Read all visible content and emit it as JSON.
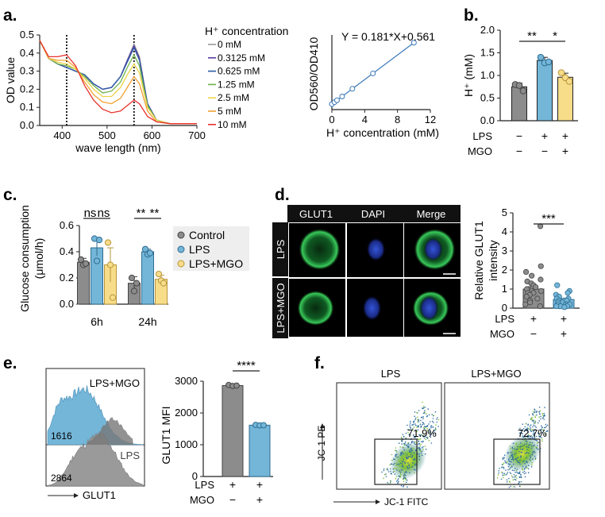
{
  "panels": {
    "a": "a.",
    "b": "b.",
    "c": "c.",
    "d": "d.",
    "e": "e.",
    "f": "f."
  },
  "colors": {
    "control": "#8c8c8c",
    "lps": "#74b6d8",
    "lps_mgo": "#f7dc8a",
    "fitline": "#3a78b8",
    "gating": "#222222"
  },
  "chart_data": [
    {
      "id": "a1",
      "type": "line",
      "xlabel": "wave length (nm)",
      "ylabel": "OD value",
      "xlim": [
        350,
        700
      ],
      "ylim": [
        0,
        0.5
      ],
      "xticks": [
        400,
        500,
        600,
        700
      ],
      "yticks": [
        0.0,
        0.1,
        0.2,
        0.3,
        0.4,
        0.5
      ],
      "legend_title": "H⁺ concentration",
      "vlines": [
        410,
        560
      ],
      "series": [
        {
          "name": "0 mM",
          "color": "#9a9a9a",
          "values": [
            [
              350,
              0.47
            ],
            [
              370,
              0.37
            ],
            [
              390,
              0.34
            ],
            [
              410,
              0.32
            ],
            [
              430,
              0.3
            ],
            [
              450,
              0.28
            ],
            [
              470,
              0.23
            ],
            [
              490,
              0.2
            ],
            [
              510,
              0.21
            ],
            [
              530,
              0.27
            ],
            [
              545,
              0.36
            ],
            [
              560,
              0.45
            ],
            [
              572,
              0.38
            ],
            [
              590,
              0.12
            ],
            [
              610,
              0.03
            ],
            [
              640,
              0.01
            ],
            [
              700,
              0.01
            ]
          ]
        },
        {
          "name": "0.3125 mM",
          "color": "#5b3d9e",
          "values": [
            [
              350,
              0.47
            ],
            [
              370,
              0.37
            ],
            [
              390,
              0.34
            ],
            [
              410,
              0.32
            ],
            [
              430,
              0.3
            ],
            [
              450,
              0.28
            ],
            [
              470,
              0.23
            ],
            [
              490,
              0.2
            ],
            [
              510,
              0.21
            ],
            [
              530,
              0.27
            ],
            [
              545,
              0.36
            ],
            [
              560,
              0.44
            ],
            [
              572,
              0.37
            ],
            [
              590,
              0.12
            ],
            [
              610,
              0.03
            ],
            [
              640,
              0.01
            ],
            [
              700,
              0.01
            ]
          ]
        },
        {
          "name": "0.625 mM",
          "color": "#2c5aa8",
          "values": [
            [
              350,
              0.47
            ],
            [
              370,
              0.37
            ],
            [
              390,
              0.34
            ],
            [
              410,
              0.32
            ],
            [
              430,
              0.3
            ],
            [
              450,
              0.28
            ],
            [
              470,
              0.23
            ],
            [
              490,
              0.2
            ],
            [
              510,
              0.21
            ],
            [
              530,
              0.27
            ],
            [
              545,
              0.35
            ],
            [
              560,
              0.43
            ],
            [
              572,
              0.36
            ],
            [
              590,
              0.12
            ],
            [
              610,
              0.03
            ],
            [
              640,
              0.01
            ],
            [
              700,
              0.01
            ]
          ]
        },
        {
          "name": "1.25 mM",
          "color": "#6fb14a",
          "values": [
            [
              350,
              0.47
            ],
            [
              370,
              0.37
            ],
            [
              390,
              0.34
            ],
            [
              410,
              0.33
            ],
            [
              430,
              0.31
            ],
            [
              450,
              0.27
            ],
            [
              470,
              0.22
            ],
            [
              490,
              0.18
            ],
            [
              510,
              0.19
            ],
            [
              530,
              0.24
            ],
            [
              545,
              0.32
            ],
            [
              560,
              0.39
            ],
            [
              572,
              0.33
            ],
            [
              590,
              0.11
            ],
            [
              610,
              0.03
            ],
            [
              640,
              0.01
            ],
            [
              700,
              0.01
            ]
          ]
        },
        {
          "name": "2.5 mM",
          "color": "#ecd44a",
          "values": [
            [
              350,
              0.47
            ],
            [
              370,
              0.37
            ],
            [
              390,
              0.35
            ],
            [
              410,
              0.34
            ],
            [
              430,
              0.31
            ],
            [
              450,
              0.26
            ],
            [
              470,
              0.2
            ],
            [
              490,
              0.16
            ],
            [
              510,
              0.16
            ],
            [
              530,
              0.21
            ],
            [
              545,
              0.28
            ],
            [
              560,
              0.34
            ],
            [
              572,
              0.29
            ],
            [
              590,
              0.1
            ],
            [
              610,
              0.03
            ],
            [
              640,
              0.01
            ],
            [
              700,
              0.01
            ]
          ]
        },
        {
          "name": "5 mM",
          "color": "#f0a032",
          "values": [
            [
              350,
              0.47
            ],
            [
              370,
              0.37
            ],
            [
              390,
              0.36
            ],
            [
              410,
              0.36
            ],
            [
              430,
              0.32
            ],
            [
              450,
              0.24
            ],
            [
              470,
              0.17
            ],
            [
              490,
              0.13
            ],
            [
              510,
              0.12
            ],
            [
              530,
              0.15
            ],
            [
              545,
              0.21
            ],
            [
              560,
              0.27
            ],
            [
              572,
              0.23
            ],
            [
              590,
              0.08
            ],
            [
              610,
              0.02
            ],
            [
              640,
              0.01
            ],
            [
              700,
              0.01
            ]
          ]
        },
        {
          "name": "10 mM",
          "color": "#e8322c",
          "values": [
            [
              350,
              0.47
            ],
            [
              370,
              0.38
            ],
            [
              390,
              0.38
            ],
            [
              410,
              0.39
            ],
            [
              430,
              0.33
            ],
            [
              450,
              0.22
            ],
            [
              470,
              0.14
            ],
            [
              490,
              0.09
            ],
            [
              510,
              0.07
            ],
            [
              530,
              0.08
            ],
            [
              545,
              0.11
            ],
            [
              560,
              0.14
            ],
            [
              572,
              0.12
            ],
            [
              590,
              0.05
            ],
            [
              610,
              0.02
            ],
            [
              640,
              0.01
            ],
            [
              700,
              0.01
            ]
          ]
        }
      ]
    },
    {
      "id": "a2",
      "type": "scatter",
      "xlabel": "H⁺ concentration (mM)",
      "ylabel": "OD560/OD410",
      "equation": "Y = 0.181*X+0.561",
      "xlim": [
        0,
        12
      ],
      "ylim": [
        0.4,
        2.6
      ],
      "xticks": [
        0,
        4,
        8,
        12
      ],
      "x": [
        0,
        0.3125,
        0.625,
        1.25,
        2.5,
        5,
        10
      ],
      "y": [
        0.561,
        0.618,
        0.674,
        0.787,
        1.013,
        1.466,
        2.371
      ]
    },
    {
      "id": "b",
      "type": "bar",
      "ylabel": "H⁺ (mM)",
      "ylim": [
        0,
        2.0
      ],
      "yticks": [
        0.0,
        0.5,
        1.0,
        1.5,
        2.0
      ],
      "row_labels": [
        "LPS",
        "MGO"
      ],
      "row_values": [
        [
          "−",
          "+",
          "+"
        ],
        [
          "−",
          "−",
          "+"
        ]
      ],
      "values": [
        0.75,
        1.33,
        0.96
      ],
      "errors": [
        0.08,
        0.07,
        0.09
      ],
      "points": [
        [
          0.8,
          0.78,
          0.66
        ],
        [
          1.4,
          1.28,
          1.3
        ],
        [
          1.06,
          0.95,
          0.87
        ]
      ],
      "significance": [
        {
          "label": "**"
        },
        {
          "label": "*"
        }
      ]
    },
    {
      "id": "c",
      "type": "bar",
      "ylabel": "Glucose consumption (μmol/h)",
      "ylim": [
        0,
        0.6
      ],
      "yticks": [
        0.0,
        0.2,
        0.4,
        0.6
      ],
      "categories": [
        "6h",
        "24h"
      ],
      "legend": [
        "Control",
        "LPS",
        "LPS+MGO"
      ],
      "series": [
        {
          "name": "Control",
          "values": [
            0.32,
            0.16
          ],
          "errors": [
            0.03,
            0.05
          ],
          "points": [
            [
              0.34,
              0.3,
              0.31
            ],
            [
              0.2,
              0.1,
              0.16
            ]
          ]
        },
        {
          "name": "LPS",
          "values": [
            0.43,
            0.4
          ],
          "errors": [
            0.06,
            0.02
          ],
          "points": [
            [
              0.5,
              0.33,
              0.49
            ],
            [
              0.42,
              0.38,
              0.39
            ]
          ]
        },
        {
          "name": "LPS+MGO",
          "values": [
            0.3,
            0.19
          ],
          "errors": [
            0.13,
            0.03
          ],
          "points": [
            [
              0.47,
              0.3,
              0.05
            ],
            [
              0.23,
              0.18,
              0.16
            ]
          ]
        }
      ],
      "significance": [
        {
          "label": "ns"
        },
        {
          "label": "ns"
        },
        {
          "label": "**"
        },
        {
          "label": "**"
        }
      ]
    },
    {
      "id": "d",
      "type": "bar",
      "ylabel": "Relative GLUT1 intensity",
      "ylim": [
        0,
        5
      ],
      "yticks": [
        0,
        1,
        2,
        3,
        4,
        5
      ],
      "row_labels": [
        "LPS",
        "MGO"
      ],
      "row_values": [
        [
          "+",
          "+"
        ],
        [
          "−",
          "+"
        ]
      ],
      "values": [
        1.0,
        0.45
      ],
      "errors": [
        0.12,
        0.05
      ],
      "significance": [
        {
          "label": "***"
        }
      ],
      "points": [
        [
          4.3,
          2.2,
          1.9,
          1.7,
          1.5,
          1.4,
          1.3,
          1.2,
          1.1,
          1.0,
          1.0,
          0.9,
          0.9,
          0.8,
          0.8,
          0.7,
          0.6,
          0.5,
          0.4,
          0.3,
          0.2,
          0.1
        ],
        [
          1.2,
          0.9,
          0.8,
          0.7,
          0.6,
          0.5,
          0.5,
          0.4,
          0.4,
          0.4,
          0.3,
          0.3,
          0.3,
          0.2,
          0.2,
          0.2,
          0.2,
          0.1,
          0.1,
          0.1,
          0.1,
          0.05
        ]
      ]
    },
    {
      "id": "e",
      "type": "bar",
      "ylabel": "GLUT1 MFI",
      "ylim": [
        0,
        3000
      ],
      "yticks": [
        0,
        1000,
        2000,
        3000
      ],
      "row_labels": [
        "LPS",
        "MGO"
      ],
      "row_values": [
        [
          "+",
          "+"
        ],
        [
          "−",
          "+"
        ]
      ],
      "values": [
        2864,
        1616
      ],
      "errors": [
        20,
        10
      ],
      "points": [
        [
          2880,
          2850,
          2862
        ],
        [
          1625,
          1610,
          1614
        ]
      ],
      "significance": [
        {
          "label": "****"
        }
      ]
    }
  ],
  "microscopy": {
    "columns": [
      "GLUT1",
      "DAPI",
      "Merge"
    ],
    "rows": [
      "LPS",
      "LPS+MGO"
    ]
  },
  "histogram": {
    "top_label": "LPS+MGO",
    "top_value": "1616",
    "bottom_label": "LPS",
    "bottom_value": "2864",
    "axis_label": "GLUT1"
  },
  "flow": {
    "plots": [
      {
        "title": "LPS",
        "gate_pct": "71.9%"
      },
      {
        "title": "LPS+MGO",
        "gate_pct": "72.7%"
      }
    ],
    "xlabel": "JC-1 FITC",
    "ylabel": "JC-1 PE"
  }
}
